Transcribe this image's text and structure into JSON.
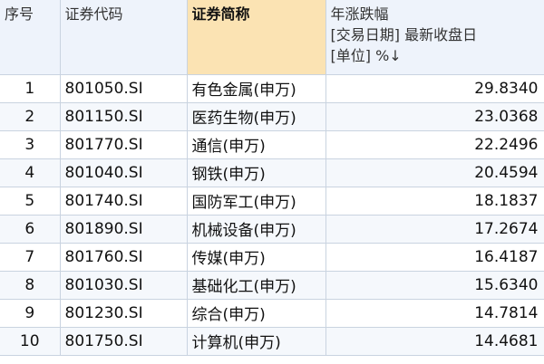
{
  "table": {
    "headers": {
      "index": "序号",
      "code": "证券代码",
      "name": "证券简称",
      "value_line1": "年涨跌幅",
      "value_line2": "[交易日期] 最新收盘日",
      "value_line3": "[单位] %↓"
    },
    "rows": [
      {
        "index": "1",
        "code": "801050.SI",
        "name": "有色金属(申万)",
        "value": "29.8340"
      },
      {
        "index": "2",
        "code": "801150.SI",
        "name": "医药生物(申万)",
        "value": "23.0368"
      },
      {
        "index": "3",
        "code": "801770.SI",
        "name": "通信(申万)",
        "value": "22.2496"
      },
      {
        "index": "4",
        "code": "801040.SI",
        "name": "钢铁(申万)",
        "value": "20.4594"
      },
      {
        "index": "5",
        "code": "801740.SI",
        "name": "国防军工(申万)",
        "value": "18.1837"
      },
      {
        "index": "6",
        "code": "801890.SI",
        "name": "机械设备(申万)",
        "value": "17.2674"
      },
      {
        "index": "7",
        "code": "801760.SI",
        "name": "传媒(申万)",
        "value": "16.4187"
      },
      {
        "index": "8",
        "code": "801030.SI",
        "name": "基础化工(申万)",
        "value": "15.6340"
      },
      {
        "index": "9",
        "code": "801230.SI",
        "name": "综合(申万)",
        "value": "14.7814"
      },
      {
        "index": "10",
        "code": "801750.SI",
        "name": "计算机(申万)",
        "value": "14.4681"
      }
    ]
  }
}
